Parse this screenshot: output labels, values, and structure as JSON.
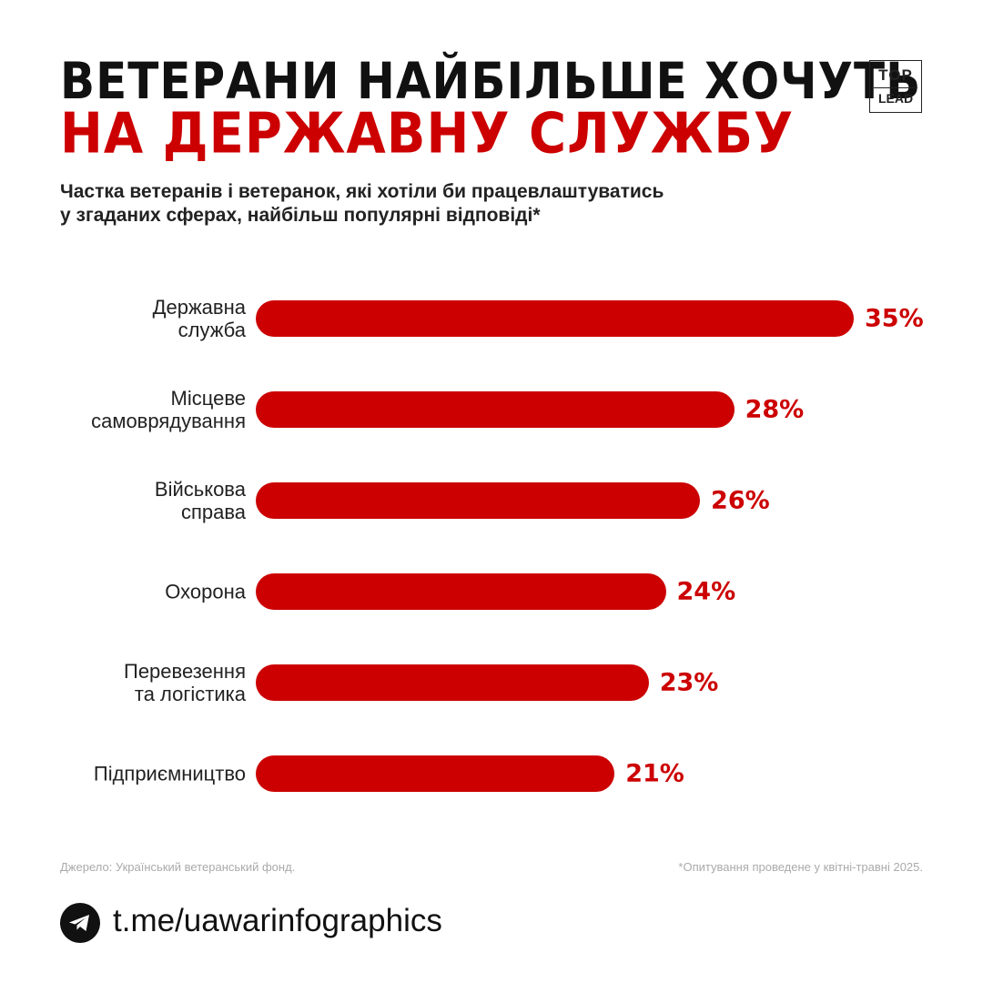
{
  "title_line1": "ВЕТЕРАНИ НАЙБІЛЬШЕ ХОЧУТЬ",
  "title_line2": "НА ДЕРЖАВНУ СЛУЖБУ",
  "logo": {
    "top": "TOP",
    "bottom": "LEAD"
  },
  "chart_data": {
    "type": "bar",
    "orientation": "horizontal",
    "subtitle": "Частка ветеранів і ветеранок, які хотіли би працевлаштуватись\nу згаданих сферах, найбільш популярні відповіді*",
    "categories": [
      "Державна\nслужба",
      "Місцеве\nсамоврядування",
      "Військова\nсправа",
      "Охорона",
      "Перевезення\nта логістика",
      "Підприємництво"
    ],
    "values": [
      35,
      28,
      26,
      24,
      23,
      21
    ],
    "value_labels": [
      "35%",
      "28%",
      "26%",
      "24%",
      "23%",
      "21%"
    ],
    "color": "#cc0000"
  },
  "source": "Джерело: Український ветеранський фонд.",
  "footnote": "*Опитування проведене у квітні-травні 2025.",
  "link": "t.me/uawarinfographics"
}
